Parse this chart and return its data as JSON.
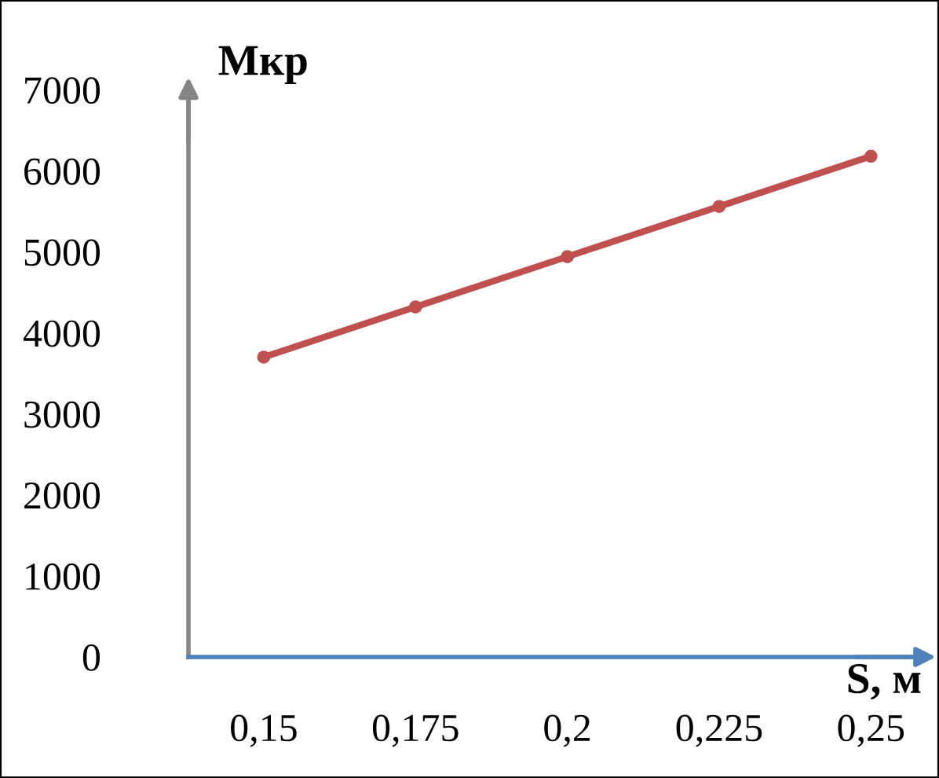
{
  "chart_data": {
    "type": "line",
    "xlabel": "S, м",
    "ylabel": "Мкр",
    "categories": [
      "0,15",
      "0,175",
      "0,2",
      "0,225",
      "0,25"
    ],
    "series": [
      {
        "color": "#c0504d",
        "values": [
          3700,
          4320,
          4940,
          5560,
          6180
        ]
      }
    ],
    "ylim": [
      0,
      7000
    ],
    "yticks": [
      0,
      1000,
      2000,
      3000,
      4000,
      5000,
      6000,
      7000
    ],
    "grid": false,
    "legend": false,
    "marker": "circle",
    "line_style": "solid"
  }
}
